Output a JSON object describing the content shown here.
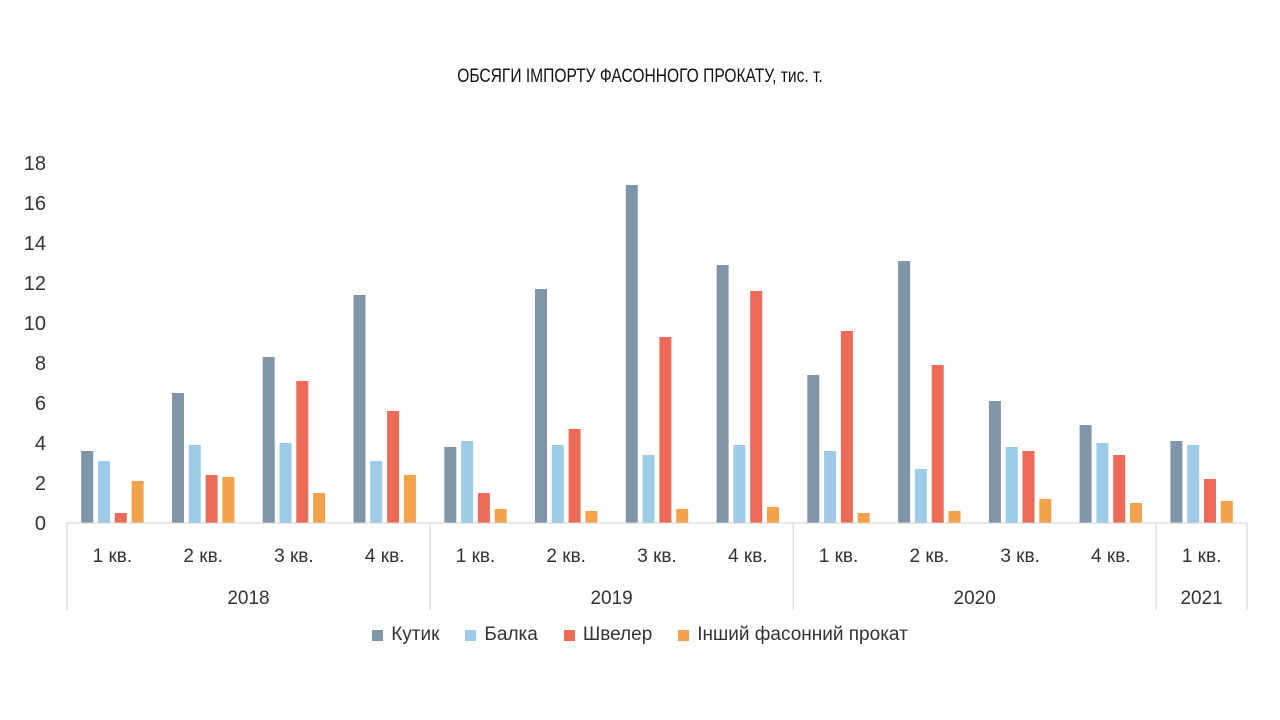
{
  "chart_data": {
    "type": "bar",
    "title": "ОБСЯГИ ІМПОРТУ ФАСОННОГО ПРОКАТУ, тис. т.",
    "ylim": [
      0,
      18
    ],
    "yticks": [
      0,
      2,
      4,
      6,
      8,
      10,
      12,
      14,
      16,
      18
    ],
    "grid": false,
    "legend_position": "bottom",
    "categories": [
      "1 кв.",
      "2 кв.",
      "3 кв.",
      "4 кв.",
      "1 кв.",
      "2 кв.",
      "3 кв.",
      "4 кв.",
      "1 кв.",
      "2 кв.",
      "3 кв.",
      "4 кв.",
      "1 кв."
    ],
    "groups": [
      {
        "label": "2018",
        "count": 4
      },
      {
        "label": "2019",
        "count": 4
      },
      {
        "label": "2020",
        "count": 4
      },
      {
        "label": "2021",
        "count": 1
      }
    ],
    "series": [
      {
        "name": "Кутик",
        "color": "#7f96a8",
        "values": [
          3.6,
          6.5,
          8.3,
          11.4,
          3.8,
          11.7,
          16.9,
          12.9,
          7.4,
          13.1,
          6.1,
          4.9,
          4.1
        ]
      },
      {
        "name": "Балка",
        "color": "#9dcbe8",
        "values": [
          3.1,
          3.9,
          4.0,
          3.1,
          4.1,
          3.9,
          3.4,
          3.9,
          3.6,
          2.7,
          3.8,
          4.0,
          3.9
        ]
      },
      {
        "name": "Швелер",
        "color": "#ec6b58",
        "values": [
          0.5,
          2.4,
          7.1,
          5.6,
          1.5,
          4.7,
          9.3,
          11.6,
          9.6,
          7.9,
          3.6,
          3.4,
          2.2
        ]
      },
      {
        "name": "Інший фасонний прокат",
        "color": "#f4a24a",
        "values": [
          2.1,
          2.3,
          1.5,
          2.4,
          0.7,
          0.6,
          0.7,
          0.8,
          0.5,
          0.6,
          1.2,
          1.0,
          1.1
        ]
      }
    ]
  }
}
